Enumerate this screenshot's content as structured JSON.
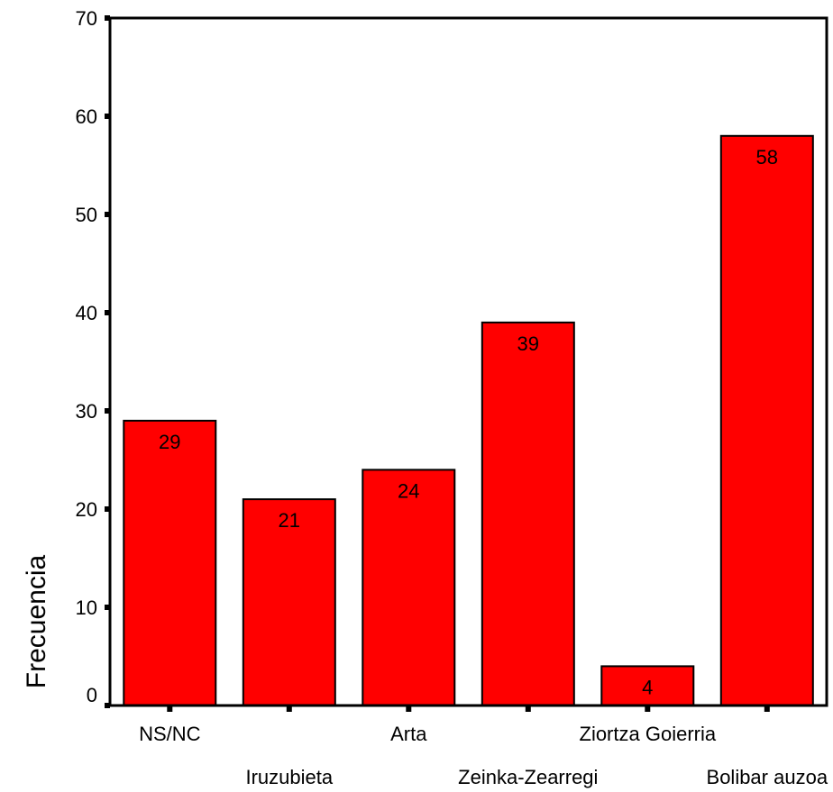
{
  "chart_data": {
    "type": "bar",
    "title": "",
    "xlabel": "",
    "ylabel": "Frecuencia",
    "categories": [
      "NS/NC",
      "Iruzubieta",
      "Arta",
      "Zeinka-Zearregi",
      "Ziortza Goierria",
      "Bolibar auzoa"
    ],
    "values": [
      29,
      21,
      24,
      39,
      4,
      58
    ],
    "ylim": [
      0,
      70
    ],
    "yticks": [
      0,
      10,
      20,
      30,
      40,
      50,
      60,
      70
    ],
    "grid": false,
    "legend": "none",
    "bar_color": "#ff0000",
    "bar_stroke": "#000000",
    "data_labels": true
  }
}
